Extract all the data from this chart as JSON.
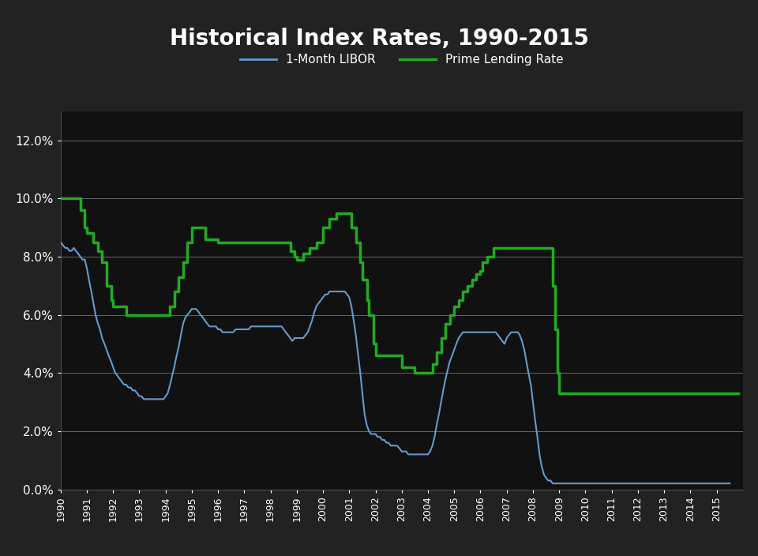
{
  "title": "Historical Index Rates, 1990-2015",
  "background_color": "#222222",
  "plot_bg_color": "#111111",
  "text_color": "#ffffff",
  "grid_color": "#666666",
  "libor_color": "#6699cc",
  "prime_color": "#22aa22",
  "ylim": [
    0.0,
    0.13
  ],
  "yticks": [
    0.0,
    0.02,
    0.04,
    0.06,
    0.08,
    0.1,
    0.12
  ],
  "ytick_labels": [
    "0.0%",
    "2.0%",
    "4.0%",
    "6.0%",
    "8.0%",
    "10.0%",
    "12.0%"
  ],
  "libor_data": {
    "years": [
      1990.0,
      1990.08,
      1990.17,
      1990.25,
      1990.33,
      1990.42,
      1990.5,
      1990.58,
      1990.67,
      1990.75,
      1990.83,
      1990.92,
      1991.0,
      1991.08,
      1991.17,
      1991.25,
      1991.33,
      1991.42,
      1991.5,
      1991.58,
      1991.67,
      1991.75,
      1991.83,
      1991.92,
      1992.0,
      1992.08,
      1992.17,
      1992.25,
      1992.33,
      1992.42,
      1992.5,
      1992.58,
      1992.67,
      1992.75,
      1992.83,
      1992.92,
      1993.0,
      1993.08,
      1993.17,
      1993.25,
      1993.33,
      1993.42,
      1993.5,
      1993.58,
      1993.67,
      1993.75,
      1993.83,
      1993.92,
      1994.0,
      1994.08,
      1994.17,
      1994.25,
      1994.33,
      1994.42,
      1994.5,
      1994.58,
      1994.67,
      1994.75,
      1994.83,
      1994.92,
      1995.0,
      1995.08,
      1995.17,
      1995.25,
      1995.33,
      1995.42,
      1995.5,
      1995.58,
      1995.67,
      1995.75,
      1995.83,
      1995.92,
      1996.0,
      1996.08,
      1996.17,
      1996.25,
      1996.33,
      1996.42,
      1996.5,
      1996.58,
      1996.67,
      1996.75,
      1996.83,
      1996.92,
      1997.0,
      1997.08,
      1997.17,
      1997.25,
      1997.33,
      1997.42,
      1997.5,
      1997.58,
      1997.67,
      1997.75,
      1997.83,
      1997.92,
      1998.0,
      1998.08,
      1998.17,
      1998.25,
      1998.33,
      1998.42,
      1998.5,
      1998.58,
      1998.67,
      1998.75,
      1998.83,
      1998.92,
      1999.0,
      1999.08,
      1999.17,
      1999.25,
      1999.33,
      1999.42,
      1999.5,
      1999.58,
      1999.67,
      1999.75,
      1999.83,
      1999.92,
      2000.0,
      2000.08,
      2000.17,
      2000.25,
      2000.33,
      2000.42,
      2000.5,
      2000.58,
      2000.67,
      2000.75,
      2000.83,
      2000.92,
      2001.0,
      2001.08,
      2001.17,
      2001.25,
      2001.33,
      2001.42,
      2001.5,
      2001.58,
      2001.67,
      2001.75,
      2001.83,
      2001.92,
      2002.0,
      2002.08,
      2002.17,
      2002.25,
      2002.33,
      2002.42,
      2002.5,
      2002.58,
      2002.67,
      2002.75,
      2002.83,
      2002.92,
      2003.0,
      2003.08,
      2003.17,
      2003.25,
      2003.33,
      2003.42,
      2003.5,
      2003.58,
      2003.67,
      2003.75,
      2003.83,
      2003.92,
      2004.0,
      2004.08,
      2004.17,
      2004.25,
      2004.33,
      2004.42,
      2004.5,
      2004.58,
      2004.67,
      2004.75,
      2004.83,
      2004.92,
      2005.0,
      2005.08,
      2005.17,
      2005.25,
      2005.33,
      2005.42,
      2005.5,
      2005.58,
      2005.67,
      2005.75,
      2005.83,
      2005.92,
      2006.0,
      2006.08,
      2006.17,
      2006.25,
      2006.33,
      2006.42,
      2006.5,
      2006.58,
      2006.67,
      2006.75,
      2006.83,
      2006.92,
      2007.0,
      2007.08,
      2007.17,
      2007.25,
      2007.33,
      2007.42,
      2007.5,
      2007.58,
      2007.67,
      2007.75,
      2007.83,
      2007.92,
      2008.0,
      2008.08,
      2008.17,
      2008.25,
      2008.33,
      2008.42,
      2008.5,
      2008.58,
      2008.67,
      2008.75,
      2008.83,
      2008.92,
      2009.0,
      2009.08,
      2009.17,
      2009.25,
      2009.33,
      2009.42,
      2009.5,
      2009.58,
      2009.67,
      2009.75,
      2009.83,
      2009.92,
      2010.0,
      2010.25,
      2010.5,
      2010.75,
      2011.0,
      2011.25,
      2011.5,
      2011.75,
      2012.0,
      2012.25,
      2012.5,
      2012.75,
      2013.0,
      2013.25,
      2013.5,
      2013.75,
      2014.0,
      2014.25,
      2014.5,
      2014.75,
      2015.0,
      2015.5
    ],
    "values": [
      0.085,
      0.084,
      0.083,
      0.083,
      0.082,
      0.082,
      0.083,
      0.082,
      0.081,
      0.08,
      0.079,
      0.079,
      0.076,
      0.072,
      0.068,
      0.064,
      0.06,
      0.057,
      0.055,
      0.052,
      0.05,
      0.048,
      0.046,
      0.044,
      0.042,
      0.04,
      0.039,
      0.038,
      0.037,
      0.036,
      0.036,
      0.035,
      0.035,
      0.034,
      0.034,
      0.033,
      0.032,
      0.032,
      0.031,
      0.031,
      0.031,
      0.031,
      0.031,
      0.031,
      0.031,
      0.031,
      0.031,
      0.031,
      0.032,
      0.033,
      0.036,
      0.039,
      0.042,
      0.046,
      0.049,
      0.053,
      0.057,
      0.059,
      0.06,
      0.061,
      0.062,
      0.062,
      0.062,
      0.061,
      0.06,
      0.059,
      0.058,
      0.057,
      0.056,
      0.056,
      0.056,
      0.056,
      0.055,
      0.055,
      0.054,
      0.054,
      0.054,
      0.054,
      0.054,
      0.054,
      0.055,
      0.055,
      0.055,
      0.055,
      0.055,
      0.055,
      0.055,
      0.056,
      0.056,
      0.056,
      0.056,
      0.056,
      0.056,
      0.056,
      0.056,
      0.056,
      0.056,
      0.056,
      0.056,
      0.056,
      0.056,
      0.056,
      0.055,
      0.054,
      0.053,
      0.052,
      0.051,
      0.052,
      0.052,
      0.052,
      0.052,
      0.052,
      0.053,
      0.054,
      0.056,
      0.058,
      0.061,
      0.063,
      0.064,
      0.065,
      0.066,
      0.067,
      0.067,
      0.068,
      0.068,
      0.068,
      0.068,
      0.068,
      0.068,
      0.068,
      0.068,
      0.067,
      0.066,
      0.063,
      0.058,
      0.053,
      0.047,
      0.04,
      0.033,
      0.026,
      0.022,
      0.02,
      0.019,
      0.019,
      0.019,
      0.018,
      0.018,
      0.017,
      0.017,
      0.016,
      0.016,
      0.015,
      0.015,
      0.015,
      0.015,
      0.014,
      0.013,
      0.013,
      0.013,
      0.012,
      0.012,
      0.012,
      0.012,
      0.012,
      0.012,
      0.012,
      0.012,
      0.012,
      0.012,
      0.013,
      0.015,
      0.018,
      0.022,
      0.026,
      0.03,
      0.034,
      0.038,
      0.041,
      0.044,
      0.046,
      0.048,
      0.05,
      0.052,
      0.053,
      0.054,
      0.054,
      0.054,
      0.054,
      0.054,
      0.054,
      0.054,
      0.054,
      0.054,
      0.054,
      0.054,
      0.054,
      0.054,
      0.054,
      0.054,
      0.054,
      0.053,
      0.052,
      0.051,
      0.05,
      0.052,
      0.053,
      0.054,
      0.054,
      0.054,
      0.054,
      0.053,
      0.051,
      0.048,
      0.044,
      0.04,
      0.036,
      0.03,
      0.024,
      0.018,
      0.012,
      0.008,
      0.005,
      0.004,
      0.003,
      0.003,
      0.002,
      0.002,
      0.002,
      0.002,
      0.002,
      0.002,
      0.002,
      0.002,
      0.002,
      0.002,
      0.002,
      0.002,
      0.002,
      0.002,
      0.002,
      0.002,
      0.002,
      0.002,
      0.002,
      0.002,
      0.002,
      0.002,
      0.002,
      0.002,
      0.002,
      0.002,
      0.002,
      0.002,
      0.002,
      0.002,
      0.002,
      0.002,
      0.002,
      0.002,
      0.002,
      0.002,
      0.002
    ]
  },
  "prime_data": {
    "years": [
      1990.0,
      1990.67,
      1990.75,
      1990.92,
      1991.0,
      1991.25,
      1991.42,
      1991.58,
      1991.75,
      1991.92,
      1992.0,
      1992.5,
      1993.0,
      1994.0,
      1994.17,
      1994.33,
      1994.5,
      1994.67,
      1994.83,
      1995.0,
      1995.08,
      1995.25,
      1995.5,
      1996.0,
      1997.0,
      1998.0,
      1998.75,
      1998.92,
      1999.0,
      1999.25,
      1999.5,
      1999.75,
      2000.0,
      2000.25,
      2000.5,
      2001.0,
      2001.08,
      2001.25,
      2001.42,
      2001.5,
      2001.67,
      2001.75,
      2001.92,
      2002.0,
      2003.0,
      2003.5,
      2003.67,
      2004.0,
      2004.17,
      2004.33,
      2004.5,
      2004.67,
      2004.83,
      2005.0,
      2005.17,
      2005.33,
      2005.5,
      2005.67,
      2005.83,
      2006.0,
      2006.08,
      2006.25,
      2006.5,
      2007.0,
      2007.75,
      2007.92,
      2008.0,
      2008.5,
      2008.75,
      2008.83,
      2008.92,
      2009.0,
      2015.0,
      2015.83
    ],
    "values": [
      0.1,
      0.1,
      0.096,
      0.09,
      0.088,
      0.085,
      0.082,
      0.078,
      0.07,
      0.065,
      0.063,
      0.06,
      0.06,
      0.06,
      0.063,
      0.068,
      0.073,
      0.078,
      0.085,
      0.09,
      0.09,
      0.09,
      0.086,
      0.085,
      0.085,
      0.085,
      0.082,
      0.08,
      0.079,
      0.081,
      0.083,
      0.085,
      0.09,
      0.093,
      0.095,
      0.095,
      0.09,
      0.085,
      0.078,
      0.072,
      0.065,
      0.06,
      0.05,
      0.046,
      0.042,
      0.04,
      0.04,
      0.04,
      0.043,
      0.047,
      0.052,
      0.057,
      0.06,
      0.063,
      0.065,
      0.068,
      0.07,
      0.072,
      0.074,
      0.075,
      0.078,
      0.08,
      0.083,
      0.083,
      0.083,
      0.083,
      0.083,
      0.083,
      0.07,
      0.055,
      0.04,
      0.033,
      0.033,
      0.033
    ]
  }
}
